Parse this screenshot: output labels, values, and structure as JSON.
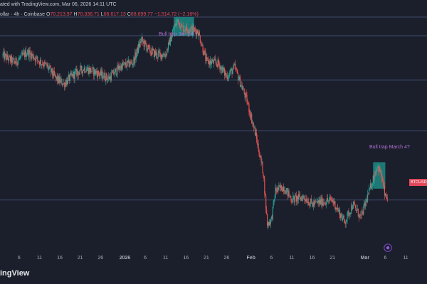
{
  "header": {
    "line1": "ated with TradingView.com, Mar 06, 2026 14:11 UTC",
    "line2_prefix": "ollar · 4h · Coinbase",
    "ohlc": {
      "o_label": "O",
      "o": "70,213.97",
      "h_label": "H",
      "h": "70,336.71",
      "l_label": "L",
      "l": "68,617.13",
      "c_label": "C",
      "c": "68,699.77",
      "change": "−1,514.72 (−2.16%)"
    }
  },
  "annotations": {
    "trap1": "Bull trap Jan 14",
    "trap2": "Bull trap March 4?"
  },
  "price_tag": "BTCUSD",
  "brand": "ingView",
  "colors": {
    "background": "#1b1f2b",
    "up": "#26a69a",
    "down": "#ef5350",
    "level_line": "#4a5a82",
    "trap_box": "#1c8a84",
    "annotation": "#b36fd6"
  },
  "chart_data": {
    "type": "candlestick",
    "symbol": "BTCUSD",
    "timeframe": "4h",
    "exchange": "Coinbase",
    "x_ticks": [
      "6",
      "11",
      "16",
      "21",
      "26",
      "2026",
      "6",
      "11",
      "16",
      "21",
      "26",
      "Feb",
      "6",
      "11",
      "16",
      "21",
      "Mar",
      "6",
      "11"
    ],
    "ylim": [
      55000,
      100000
    ],
    "horizontal_levels": [
      97300,
      94300,
      87300,
      79300,
      68300
    ],
    "trap_zones": [
      {
        "label": "Bull trap Jan 14",
        "x_start": "2026-01-13",
        "x_end": "2026-01-18",
        "y_low": 94300,
        "y_high": 97300
      },
      {
        "label": "Bull trap March 4?",
        "x_start": "2026-03-03",
        "x_end": "2026-03-06",
        "y_low": 70100,
        "y_high": 74300
      }
    ],
    "path": [
      [
        "2025-12-02",
        91200
      ],
      [
        "2025-12-05",
        90100
      ],
      [
        "2025-12-08",
        91800
      ],
      [
        "2025-12-11",
        90300
      ],
      [
        "2025-12-13",
        89400
      ],
      [
        "2025-12-15",
        87600
      ],
      [
        "2025-12-17",
        86700
      ],
      [
        "2025-12-19",
        88000
      ],
      [
        "2025-12-22",
        89200
      ],
      [
        "2025-12-25",
        88500
      ],
      [
        "2025-12-28",
        87600
      ],
      [
        "2025-12-31",
        89500
      ],
      [
        "2026-01-03",
        90100
      ],
      [
        "2026-01-05",
        93700
      ],
      [
        "2026-01-07",
        92000
      ],
      [
        "2026-01-09",
        91300
      ],
      [
        "2026-01-11",
        91400
      ],
      [
        "2026-01-13",
        95400
      ],
      [
        "2026-01-14",
        96900
      ],
      [
        "2026-01-15",
        95600
      ],
      [
        "2026-01-17",
        95400
      ],
      [
        "2026-01-19",
        95000
      ],
      [
        "2026-01-21",
        90300
      ],
      [
        "2026-01-24",
        89900
      ],
      [
        "2026-01-26",
        87900
      ],
      [
        "2026-01-28",
        89300
      ],
      [
        "2026-01-31",
        84000
      ],
      [
        "2026-02-02",
        79000
      ],
      [
        "2026-02-04",
        72700
      ],
      [
        "2026-02-05",
        64500
      ],
      [
        "2026-02-06",
        65200
      ],
      [
        "2026-02-07",
        69800
      ],
      [
        "2026-02-09",
        70400
      ],
      [
        "2026-02-11",
        68400
      ],
      [
        "2026-02-14",
        68800
      ],
      [
        "2026-02-16",
        67600
      ],
      [
        "2026-02-18",
        68000
      ],
      [
        "2026-02-21",
        68300
      ],
      [
        "2026-02-24",
        64800
      ],
      [
        "2026-02-26",
        67600
      ],
      [
        "2026-02-28",
        65500
      ],
      [
        "2026-03-02",
        69600
      ],
      [
        "2026-03-04",
        73800
      ],
      [
        "2026-03-05",
        72300
      ],
      [
        "2026-03-06",
        68700
      ]
    ],
    "last_close": 68699.77
  }
}
